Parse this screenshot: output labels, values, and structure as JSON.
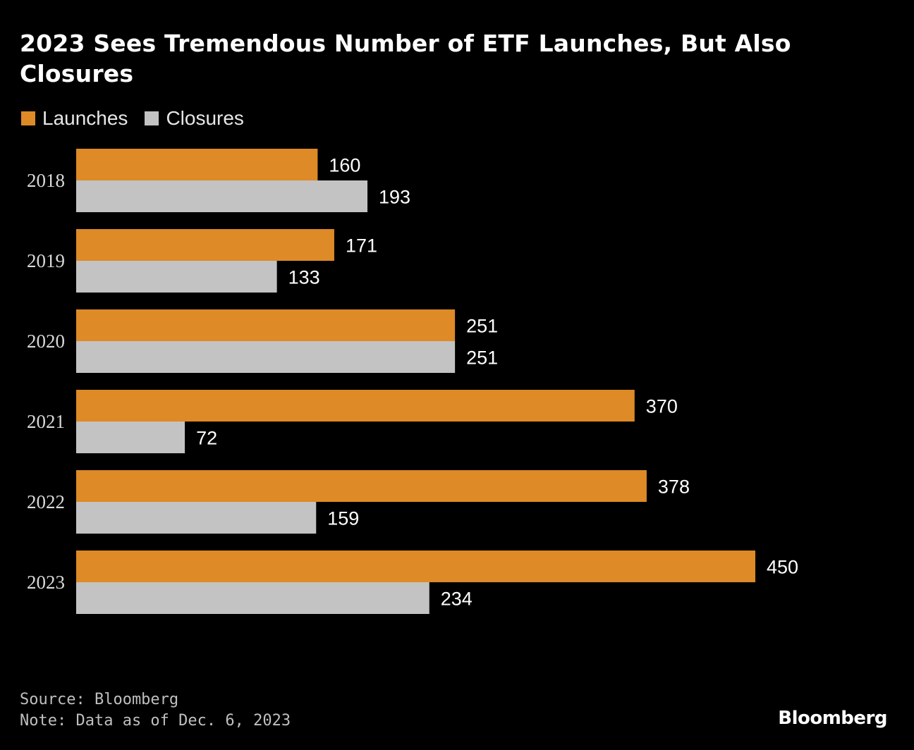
{
  "header": {
    "title": "2023 Sees Tremendous Number of ETF Launches, But Also Closures"
  },
  "legend": {
    "items": [
      {
        "label": "Launches",
        "color": "#dd8a27"
      },
      {
        "label": "Closures",
        "color": "#c3c3c3"
      }
    ]
  },
  "chart_data": {
    "type": "bar",
    "orientation": "horizontal",
    "title": "2023 Sees Tremendous Number of ETF Launches, But Also Closures",
    "categories": [
      "2018",
      "2019",
      "2020",
      "2021",
      "2022",
      "2023"
    ],
    "series": [
      {
        "name": "Launches",
        "color": "#dd8a27",
        "values": [
          160,
          171,
          251,
          370,
          378,
          450
        ]
      },
      {
        "name": "Closures",
        "color": "#c3c3c3",
        "values": [
          193,
          133,
          251,
          72,
          159,
          234
        ]
      }
    ],
    "xlim": [
      0,
      450
    ],
    "grid": false,
    "legend_position": "top-left",
    "data_labels": true
  },
  "footer": {
    "source": "Source: Bloomberg",
    "note": "Note: Data as of Dec. 6, 2023",
    "brand": "Bloomberg"
  }
}
